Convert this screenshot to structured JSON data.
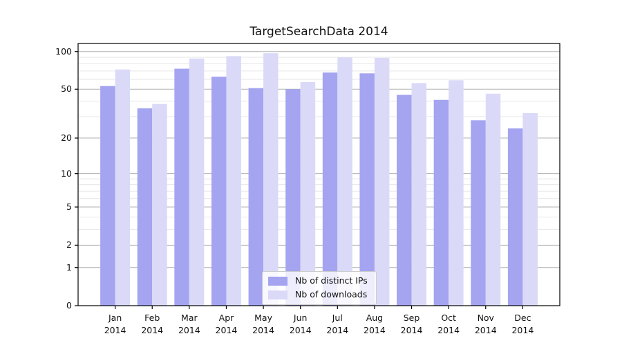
{
  "chart_data": {
    "type": "bar",
    "title": "TargetSearchData 2014",
    "categories": [
      "Jan",
      "Feb",
      "Mar",
      "Apr",
      "May",
      "Jun",
      "Jul",
      "Aug",
      "Sep",
      "Oct",
      "Nov",
      "Dec"
    ],
    "category_year": "2014",
    "series": [
      {
        "name": "Nb of distinct IPs",
        "color": "#a4a4f1",
        "values": [
          53,
          35,
          73,
          63,
          51,
          50,
          68,
          67,
          45,
          41,
          28,
          24
        ]
      },
      {
        "name": "Nb of downloads",
        "color": "#dadaf8",
        "values": [
          72,
          38,
          88,
          92,
          97,
          57,
          90,
          89,
          56,
          59,
          46,
          32
        ]
      }
    ],
    "yscale": "log1p",
    "y_ticks": [
      0,
      1,
      2,
      5,
      10,
      20,
      50,
      100
    ],
    "y_minor_gridlines": [
      3,
      4,
      6,
      7,
      8,
      9,
      30,
      40,
      60,
      70,
      80,
      90
    ],
    "ylim": [
      0,
      116
    ],
    "xlabel": "",
    "ylabel": "",
    "grid": true,
    "legend_position": "lower center",
    "colors": {
      "major_grid": "#b0b0b0",
      "minor_grid": "#e6e6e6",
      "axis": "#000000",
      "text": "#111111",
      "legend_bg": "rgba(255,255,255,0.8)",
      "legend_border": "#cccccc"
    }
  }
}
